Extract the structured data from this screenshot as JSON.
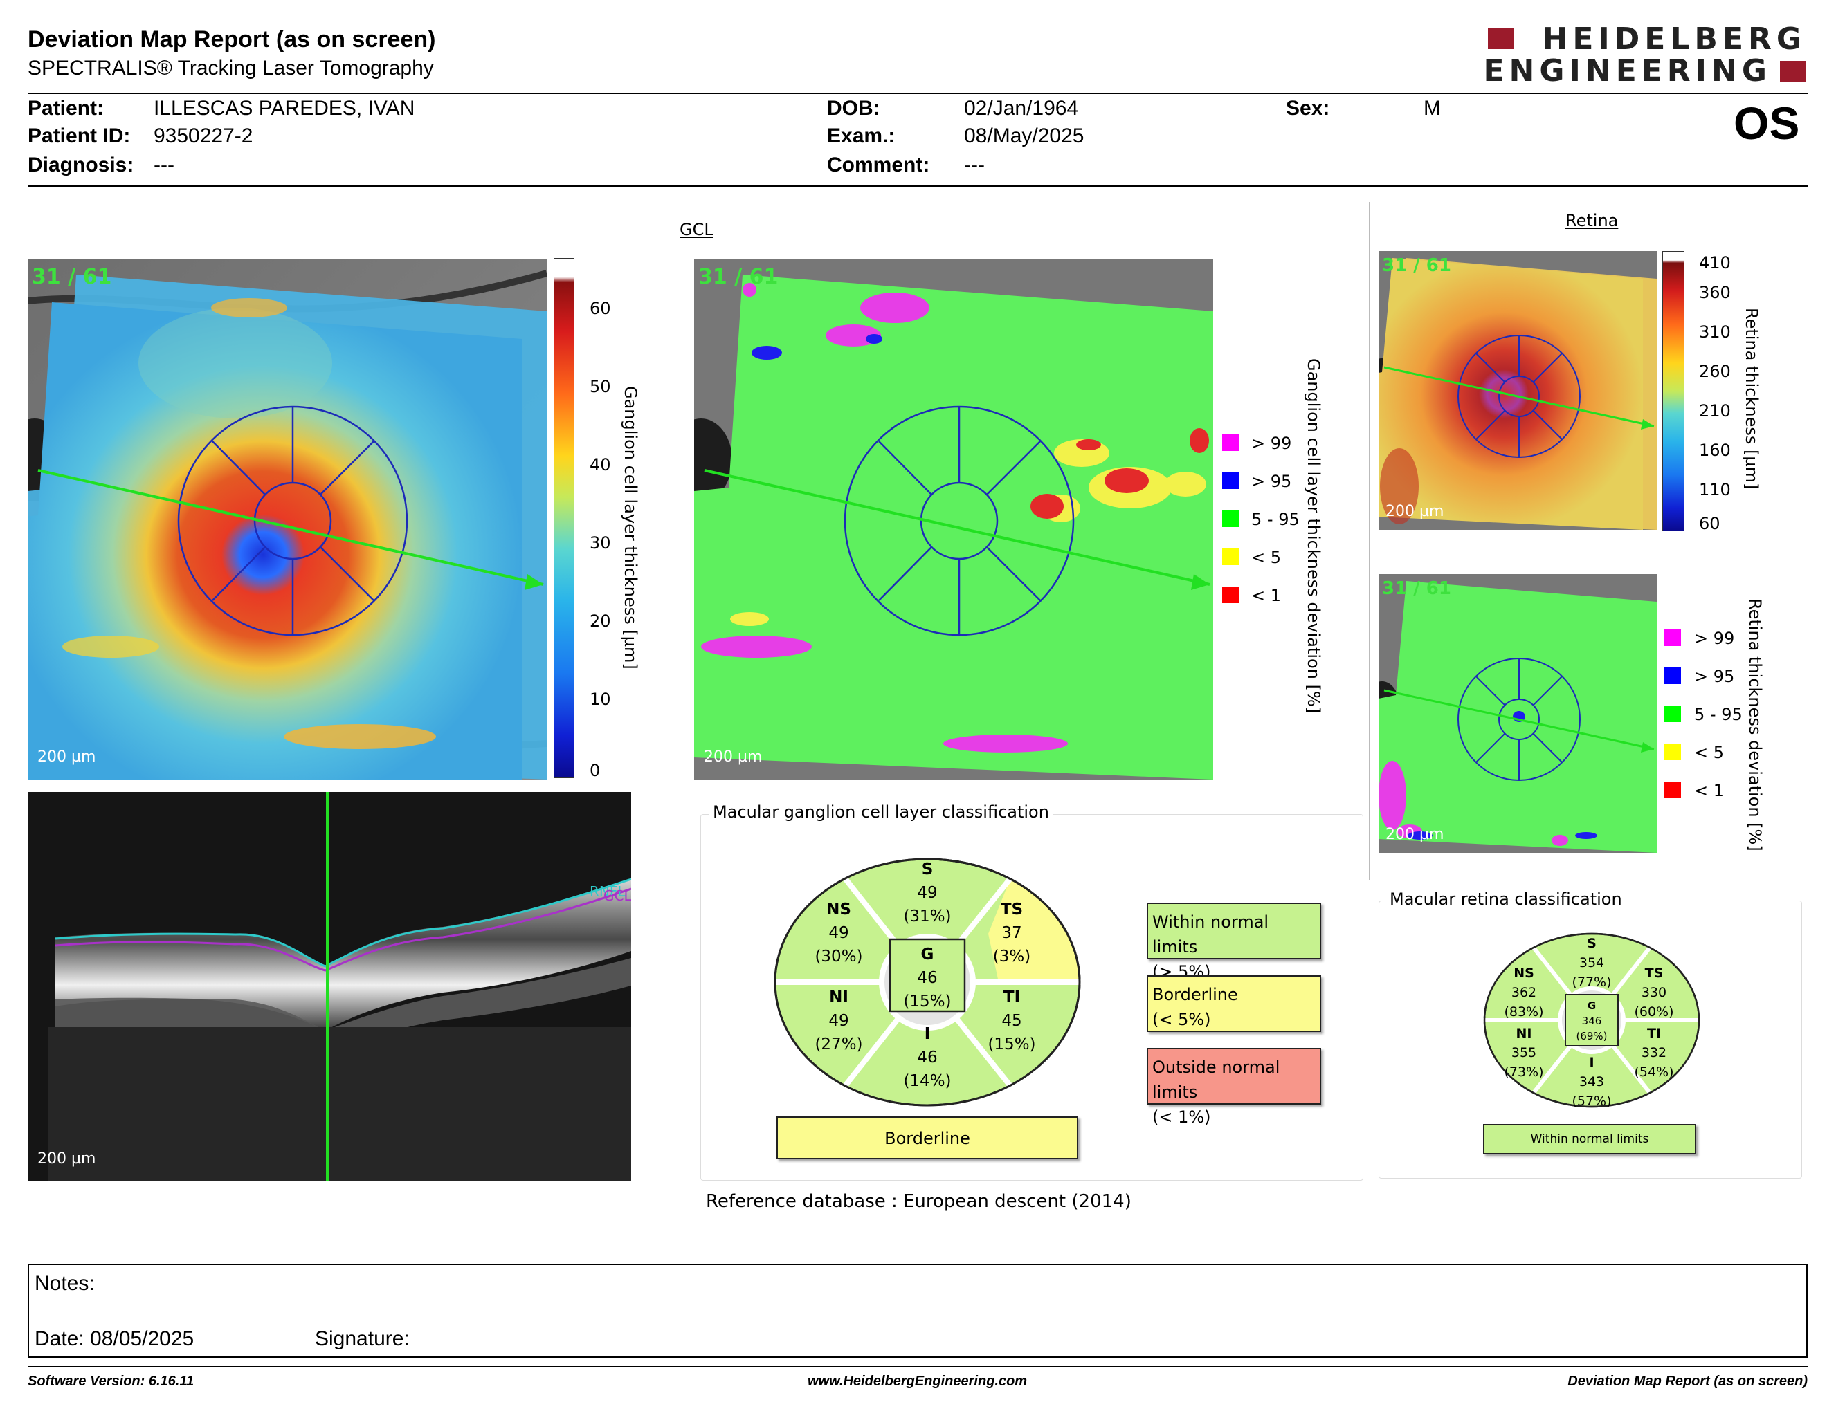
{
  "header": {
    "title": "Deviation Map Report (as on screen)",
    "subtitle": "SPECTRALIS® Tracking Laser Tomography",
    "logo_line1": "HEIDELBERG",
    "logo_line2": "ENGINEERING",
    "eye": "OS"
  },
  "patient": {
    "name_label": "Patient:",
    "name": "ILLESCAS PAREDES, IVAN",
    "id_label": "Patient ID:",
    "id": "9350227-2",
    "diagnosis_label": "Diagnosis:",
    "diagnosis": "---",
    "dob_label": "DOB:",
    "dob": "02/Jan/1964",
    "exam_label": "Exam.:",
    "exam": "08/May/2025",
    "comment_label": "Comment:",
    "comment": "---",
    "sex_label": "Sex:",
    "sex": "M"
  },
  "gcl": {
    "title": "GCL",
    "frame_label": "31 / 61",
    "scale_label": "200 µm",
    "colorbar_label": "Ganglion cell layer thickness [µm]",
    "colorbar_ticks": [
      "60",
      "50",
      "40",
      "30",
      "20",
      "10",
      "0"
    ],
    "deviation_label": "Ganglion cell layer thickness deviation [%]",
    "legend": [
      {
        "label": "> 99",
        "color": "#ff00ff"
      },
      {
        "label": "> 95",
        "color": "#0000ff"
      },
      {
        "label": "5 - 95",
        "color": "#00ff00"
      },
      {
        "label": "< 5",
        "color": "#ffff00"
      },
      {
        "label": "< 1",
        "color": "#ff0000"
      }
    ]
  },
  "bscan": {
    "scale_label": "200 µm",
    "layer_tag_1": "RNFL",
    "layer_tag_2": "GCL"
  },
  "retina": {
    "title": "Retina",
    "frame_label": "31 / 61",
    "scale_label": "200 µm",
    "colorbar_label": "Retina thickness [µm]",
    "colorbar_ticks": [
      "410",
      "360",
      "310",
      "260",
      "210",
      "160",
      "110",
      "60"
    ],
    "deviation_label": "Retina thickness deviation [%]"
  },
  "gcl_classification": {
    "title": "Macular ganglion cell layer classification",
    "sectors": {
      "S": {
        "name": "S",
        "value": "49",
        "pct": "(31%)"
      },
      "NS": {
        "name": "NS",
        "value": "49",
        "pct": "(30%)"
      },
      "TS": {
        "name": "TS",
        "value": "37",
        "pct": "(3%)"
      },
      "G": {
        "name": "G",
        "value": "46",
        "pct": "(15%)"
      },
      "NI": {
        "name": "NI",
        "value": "49",
        "pct": "(27%)"
      },
      "TI": {
        "name": "TI",
        "value": "45",
        "pct": "(15%)"
      },
      "I": {
        "name": "I",
        "value": "46",
        "pct": "(14%)"
      }
    },
    "result": "Borderline",
    "key": [
      {
        "line1": "Within normal limits",
        "line2": "(> 5%)"
      },
      {
        "line1": "Borderline",
        "line2": "(< 5%)"
      },
      {
        "line1": "Outside normal limits",
        "line2": "(< 1%)"
      }
    ],
    "reference_label": "Reference database :",
    "reference_value": "European descent (2014)"
  },
  "retina_classification": {
    "title": "Macular retina classification",
    "sectors": {
      "S": {
        "name": "S",
        "value": "354",
        "pct": "(77%)"
      },
      "NS": {
        "name": "NS",
        "value": "362",
        "pct": "(83%)"
      },
      "TS": {
        "name": "TS",
        "value": "330",
        "pct": "(60%)"
      },
      "G": {
        "name": "G",
        "value": "346",
        "pct": "(69%)"
      },
      "NI": {
        "name": "NI",
        "value": "355",
        "pct": "(73%)"
      },
      "TI": {
        "name": "TI",
        "value": "332",
        "pct": "(54%)"
      },
      "I": {
        "name": "I",
        "value": "343",
        "pct": "(57%)"
      }
    },
    "result": "Within normal limits"
  },
  "notes": {
    "notes_label": "Notes:",
    "date_label": "Date: 08/05/2025",
    "signature_label": "Signature:"
  },
  "footer": {
    "version": "Software Version: 6.16.11",
    "website": "www.HeidelbergEngineering.com",
    "report": "Deviation Map Report (as on screen)"
  },
  "colors": {
    "normal": "#c6f28f",
    "borderline": "#fbfb8f",
    "outside": "#f7968a",
    "grid_blue": "#1c2bb8",
    "scan_line": "#22e022"
  }
}
